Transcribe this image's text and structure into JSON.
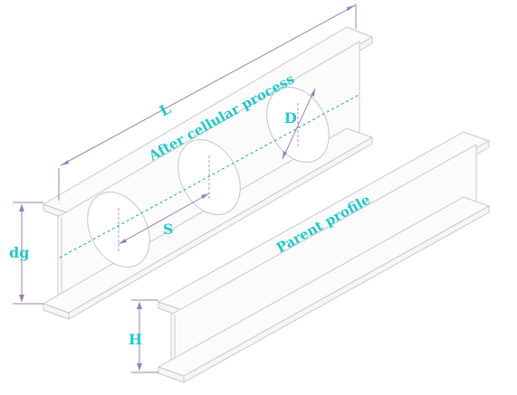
{
  "labels": {
    "length": "L",
    "after_process": "After cellular process",
    "hole_diameter": "D",
    "spacing": "S",
    "castellated_depth": "dg",
    "parent_profile": "Parent profile",
    "parent_height": "H"
  },
  "colors": {
    "label": "#22c8c6",
    "dimension": "#9a7fb5",
    "outline": "#c8c8c8",
    "axis": "#1aa6a0"
  }
}
